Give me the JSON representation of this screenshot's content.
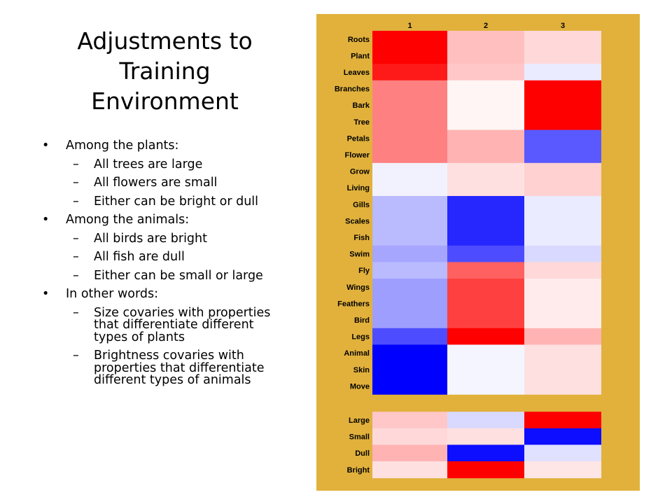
{
  "title_lines": [
    "Adjustments to",
    "Training",
    "Environment"
  ],
  "bullets": [
    {
      "level": 1,
      "text": "Among the plants:"
    },
    {
      "level": 2,
      "text": "All trees are large"
    },
    {
      "level": 2,
      "text": "All flowers are small"
    },
    {
      "level": 2,
      "text": "Either can be bright or dull"
    },
    {
      "level": 1,
      "text": "Among the animals:"
    },
    {
      "level": 2,
      "text": "All birds are bright"
    },
    {
      "level": 2,
      "text": "All fish are dull"
    },
    {
      "level": 2,
      "text": "Either can be small or large"
    },
    {
      "level": 1,
      "text": "In other words:"
    },
    {
      "level": 2,
      "text": "Size covaries with properties that differentiate different types of plants"
    },
    {
      "level": 2,
      "text": "Brightness covaries with properties that differentiate different types of animals"
    }
  ],
  "bullet_marks": {
    "level1": "•",
    "level2": "–"
  },
  "colors": {
    "chart_background": "#E1B13C",
    "positive": "#FF0000",
    "negative": "#0000FF",
    "neutral": "#FFFFFF"
  },
  "chart_data": {
    "type": "heatmap",
    "color_scale": "red = positive, blue = negative, white = zero",
    "columns": [
      "1",
      "2",
      "3"
    ],
    "rows": [
      "Roots",
      "Plant",
      "Leaves",
      "Branches",
      "Bark",
      "Tree",
      "Petals",
      "Flower",
      "Grow",
      "Living",
      "Gills",
      "Scales",
      "Fish",
      "Swim",
      "Fly",
      "Wings",
      "Feathers",
      "Bird",
      "Legs",
      "Animal",
      "Skin",
      "Move",
      "Large",
      "Small",
      "Dull",
      "Bright"
    ],
    "row_groups": [
      [
        "Roots",
        "Plant",
        "Leaves",
        "Branches",
        "Bark",
        "Tree",
        "Petals",
        "Flower",
        "Grow",
        "Living",
        "Gills",
        "Scales",
        "Fish",
        "Swim",
        "Fly",
        "Wings",
        "Feathers",
        "Bird",
        "Legs",
        "Animal",
        "Skin",
        "Move"
      ],
      [
        "Large",
        "Small",
        "Dull",
        "Bright"
      ]
    ],
    "values": [
      [
        1.0,
        0.25,
        0.15
      ],
      [
        1.0,
        0.25,
        0.15
      ],
      [
        0.9,
        0.22,
        -0.08
      ],
      [
        0.5,
        0.04,
        1.0
      ],
      [
        0.5,
        0.04,
        1.0
      ],
      [
        0.5,
        0.04,
        1.0
      ],
      [
        0.5,
        0.3,
        -0.65
      ],
      [
        0.5,
        0.3,
        -0.65
      ],
      [
        -0.05,
        0.12,
        0.18
      ],
      [
        -0.05,
        0.12,
        0.18
      ],
      [
        -0.27,
        -0.85,
        -0.08
      ],
      [
        -0.27,
        -0.85,
        -0.08
      ],
      [
        -0.27,
        -0.85,
        -0.08
      ],
      [
        -0.35,
        -0.7,
        -0.15
      ],
      [
        -0.27,
        0.62,
        0.15
      ],
      [
        -0.38,
        0.75,
        0.08
      ],
      [
        -0.38,
        0.75,
        0.08
      ],
      [
        -0.38,
        0.75,
        0.08
      ],
      [
        -0.7,
        1.0,
        0.3
      ],
      [
        -1.0,
        -0.04,
        0.12
      ],
      [
        -1.0,
        -0.04,
        0.12
      ],
      [
        -1.0,
        -0.04,
        0.12
      ],
      [
        0.22,
        -0.15,
        1.0
      ],
      [
        0.15,
        0.12,
        -0.95
      ],
      [
        0.3,
        -0.95,
        -0.12
      ],
      [
        0.12,
        1.0,
        0.1
      ]
    ]
  }
}
